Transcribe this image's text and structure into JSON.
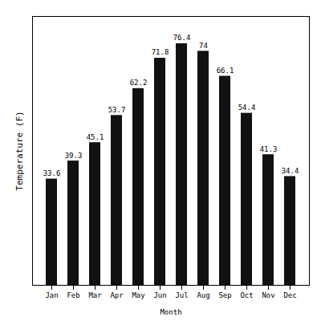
{
  "chart_data": {
    "type": "bar",
    "categories": [
      "Jan",
      "Feb",
      "Mar",
      "Apr",
      "May",
      "Jun",
      "Jul",
      "Aug",
      "Sep",
      "Oct",
      "Nov",
      "Dec"
    ],
    "values": [
      33.6,
      39.3,
      45.1,
      53.7,
      62.2,
      71.8,
      76.4,
      74.0,
      66.1,
      54.4,
      41.3,
      34.4
    ],
    "color": "#111111",
    "xlabel": "Month",
    "ylabel": "Temperature (F)",
    "ylim": [
      0,
      85
    ],
    "data_labels": true,
    "tick_labels": "x",
    "grid": false
  }
}
